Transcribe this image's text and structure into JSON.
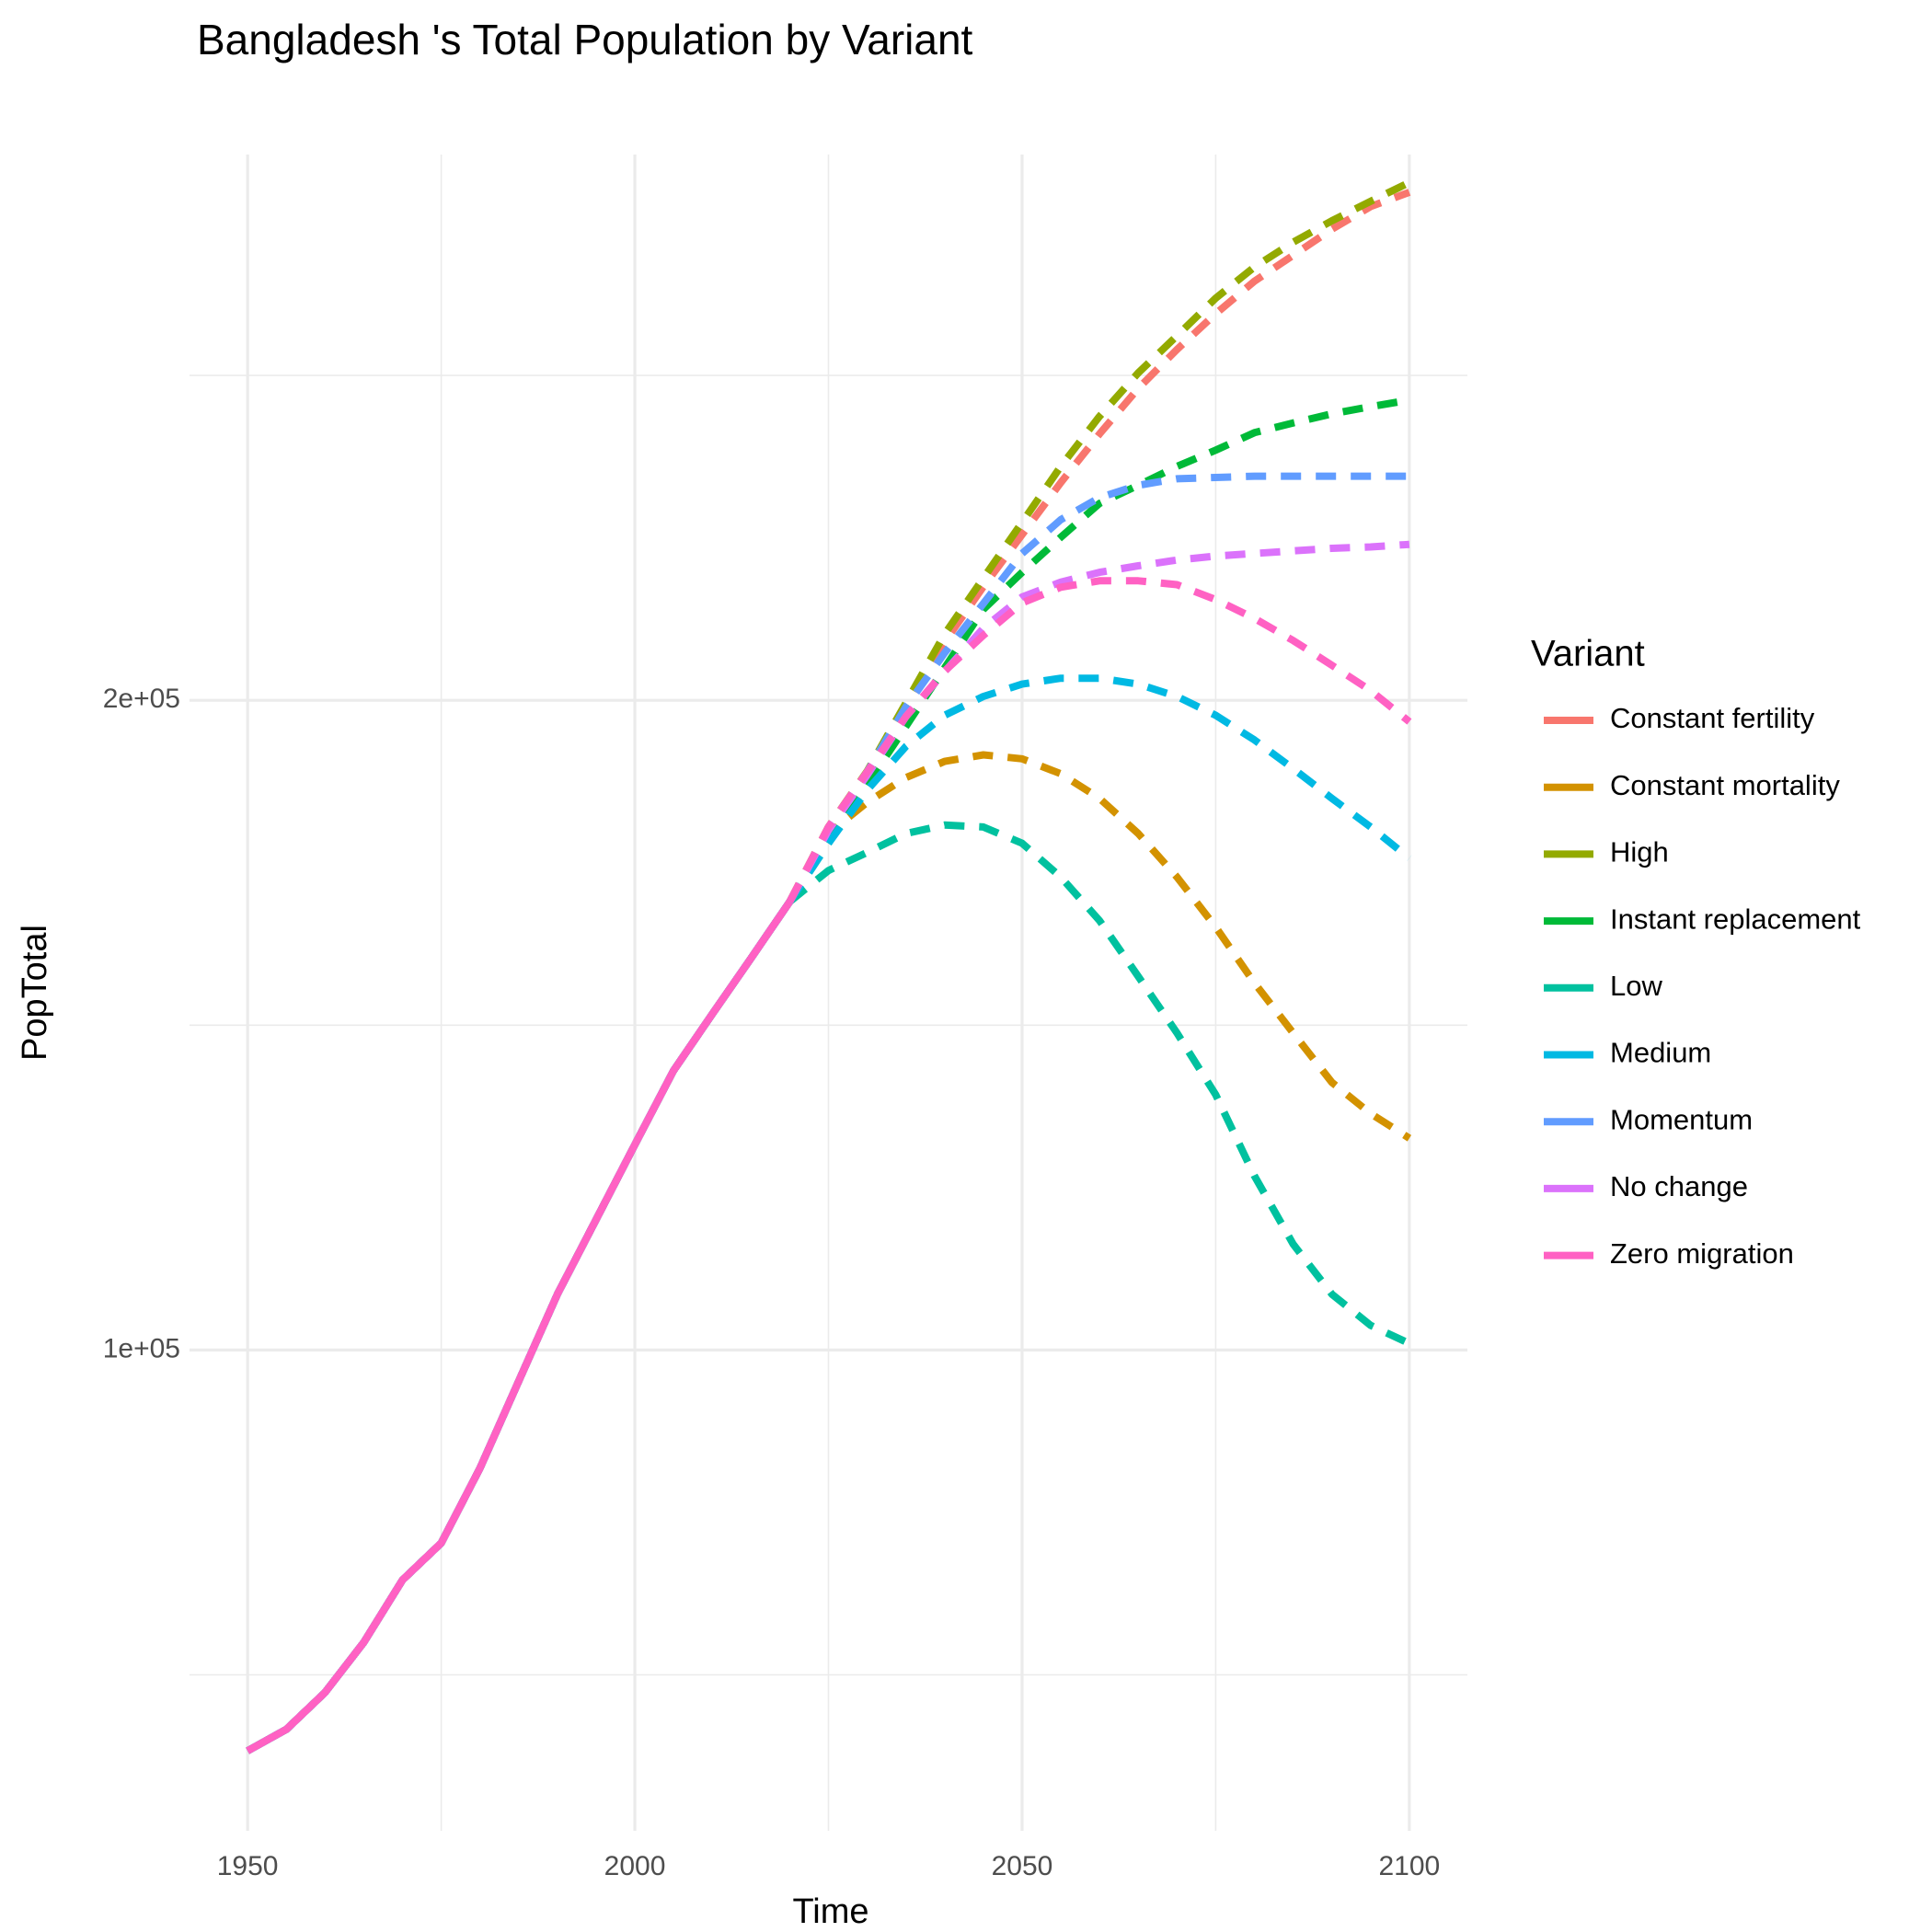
{
  "chart_data": {
    "type": "line",
    "title": "Bangladesh 's Total Population by Variant",
    "x_label": "Time",
    "y_label": "PopTotal",
    "legend_title": "Variant",
    "legend_position": "right",
    "grid": true,
    "dashed_after": 2020,
    "xlim": [
      1942.5,
      2107.5
    ],
    "xticks": [
      1950,
      2000,
      2050,
      2100
    ],
    "xminorticks": [
      1975,
      2025,
      2075
    ],
    "ylim": [
      26000,
      284000
    ],
    "yticks": [
      {
        "value": 100000,
        "label": "1e+05"
      },
      {
        "value": 200000,
        "label": "2e+05"
      }
    ],
    "yminorticks": [
      50000,
      150000,
      250000
    ],
    "x": [
      1950,
      1955,
      1960,
      1965,
      1970,
      1975,
      1980,
      1985,
      1990,
      1995,
      2000,
      2005,
      2010,
      2015,
      2020,
      2025,
      2030,
      2035,
      2040,
      2045,
      2050,
      2055,
      2060,
      2065,
      2070,
      2075,
      2080,
      2085,
      2090,
      2095,
      2100
    ],
    "series": [
      {
        "name": "Constant fertility",
        "color": "#F8766D",
        "values": [
          38300,
          41600,
          47300,
          55000,
          64600,
          70300,
          81800,
          95200,
          108600,
          120100,
          131600,
          143000,
          151700,
          160300,
          169000,
          180500,
          189000,
          199000,
          209000,
          217500,
          225500,
          233500,
          241000,
          248000,
          254000,
          259500,
          264500,
          268500,
          272500,
          276000,
          278200
        ]
      },
      {
        "name": "Constant mortality",
        "color": "#D39200",
        "values": [
          38300,
          41600,
          47300,
          55000,
          64600,
          70300,
          81800,
          95200,
          108600,
          120100,
          131600,
          143000,
          151700,
          160300,
          169000,
          179500,
          184300,
          188100,
          190600,
          191600,
          191000,
          188700,
          184900,
          179500,
          172800,
          165100,
          156500,
          148800,
          141200,
          136400,
          132600
        ]
      },
      {
        "name": "High",
        "color": "#93AA00",
        "values": [
          38300,
          41600,
          47300,
          55000,
          64600,
          70300,
          81800,
          95200,
          108600,
          120100,
          131600,
          143000,
          151700,
          160300,
          169000,
          180500,
          189100,
          199600,
          210200,
          218800,
          227400,
          236000,
          243700,
          250400,
          256100,
          261900,
          266700,
          270500,
          273800,
          276800,
          279700
        ]
      },
      {
        "name": "Instant replacement",
        "color": "#00BA38",
        "values": [
          38300,
          41600,
          47300,
          55000,
          64600,
          70300,
          81800,
          95200,
          108600,
          120100,
          131600,
          143000,
          151700,
          160300,
          169000,
          178000,
          187000,
          196000,
          205000,
          214000,
          219700,
          225100,
          230300,
          233100,
          236000,
          238500,
          241200,
          242700,
          244100,
          245200,
          246200
        ]
      },
      {
        "name": "Low",
        "color": "#00C19F",
        "values": [
          38300,
          41600,
          47300,
          55000,
          64600,
          70300,
          81800,
          95200,
          108600,
          120100,
          131600,
          143000,
          151700,
          160300,
          169000,
          173800,
          176600,
          179500,
          180800,
          180500,
          178000,
          172800,
          166100,
          157500,
          148800,
          139300,
          126800,
          116300,
          108600,
          103800,
          101000
        ]
      },
      {
        "name": "Medium",
        "color": "#00B9E3",
        "values": [
          38300,
          41600,
          47300,
          55000,
          64600,
          70300,
          81800,
          95200,
          108600,
          120100,
          131600,
          143000,
          151700,
          160300,
          169000,
          178000,
          186200,
          192900,
          197700,
          200600,
          202500,
          203400,
          203400,
          202500,
          200600,
          197700,
          193900,
          189500,
          184900,
          180500,
          175700
        ]
      },
      {
        "name": "Momentum",
        "color": "#619CFF",
        "values": [
          38300,
          41600,
          47300,
          55000,
          64600,
          70300,
          81800,
          95200,
          108600,
          120100,
          131600,
          143000,
          151700,
          160300,
          169000,
          180000,
          189000,
          199000,
          207300,
          214900,
          222600,
          227800,
          231200,
          233100,
          234100,
          234300,
          234500,
          234500,
          234500,
          234500,
          234500
        ]
      },
      {
        "name": "No change",
        "color": "#DB72FB",
        "values": [
          38300,
          41600,
          47300,
          55000,
          64600,
          70300,
          81800,
          95200,
          108600,
          120100,
          131600,
          143000,
          151700,
          160300,
          169000,
          180000,
          188500,
          197500,
          204400,
          211100,
          215900,
          218200,
          219700,
          220700,
          221600,
          222200,
          222600,
          223000,
          223400,
          223600,
          224000
        ]
      },
      {
        "name": "Zero migration",
        "color": "#FF61C3",
        "values": [
          38300,
          41600,
          47300,
          55000,
          64600,
          70300,
          81800,
          95200,
          108600,
          120100,
          131600,
          143000,
          151700,
          160300,
          169000,
          180500,
          189000,
          197500,
          204500,
          210000,
          215000,
          217400,
          218400,
          218400,
          217800,
          215500,
          212600,
          209200,
          205400,
          201500,
          196700
        ]
      }
    ]
  }
}
